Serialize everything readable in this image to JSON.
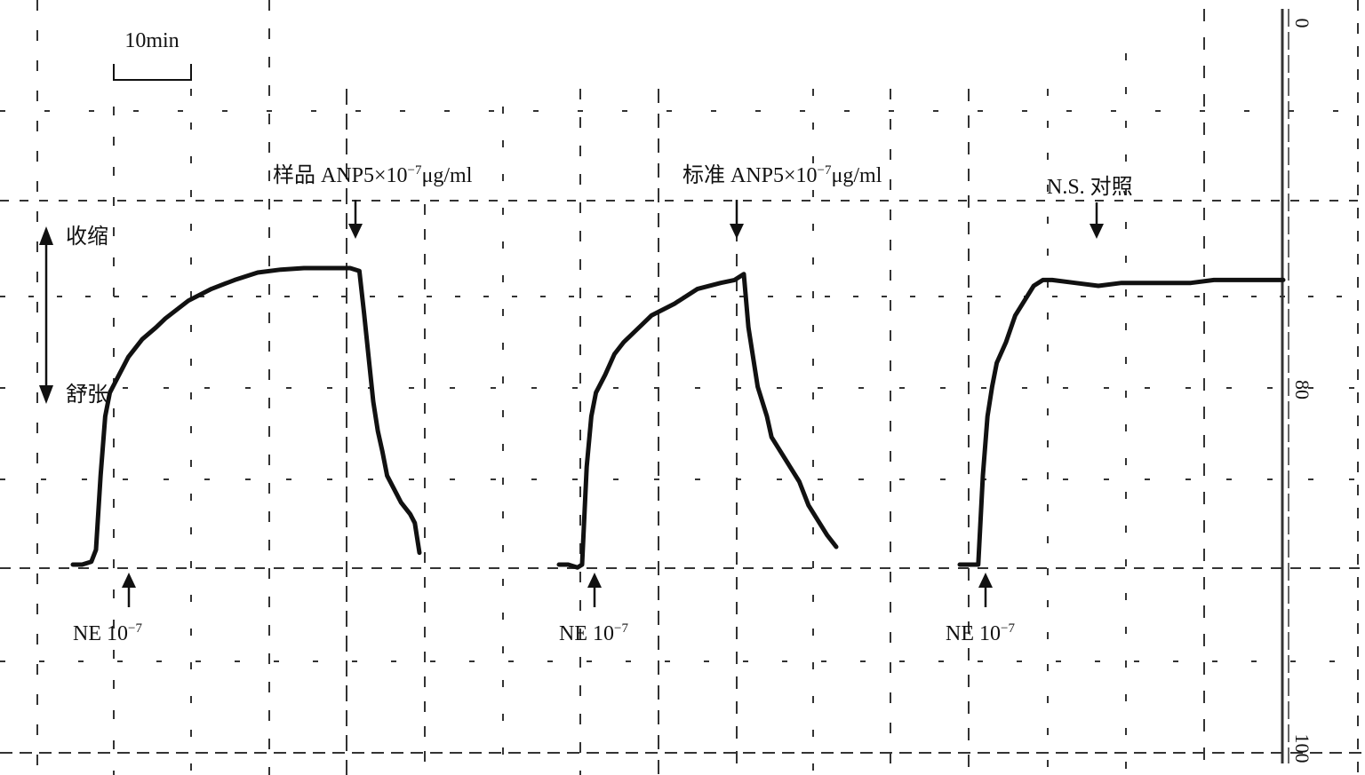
{
  "chart_data": {
    "type": "line",
    "xlabel": "",
    "ylabel": "",
    "time_scale_bar": "10min",
    "direction_labels": {
      "up": "收缩",
      "down": "舒张"
    },
    "scale": {
      "ticks": [
        "0",
        "80",
        "100"
      ]
    },
    "annotations": {
      "sample_anp": "样品 ANP5×10",
      "standard_anp": "标准 ANP5×10",
      "anp_exponent": "−7",
      "anp_unit": "μg/ml",
      "ns_control": "N.S. 对照",
      "ne": "NE 10",
      "ne_exponent": "−7"
    },
    "xlim": [
      0,
      160
    ],
    "ylim": [
      0,
      100
    ],
    "series": [
      {
        "x": [
          0,
          2,
          4,
          5,
          6,
          7,
          8,
          10,
          12,
          15,
          18,
          20,
          25,
          30,
          35,
          40,
          45,
          50,
          55,
          60,
          62,
          63,
          64,
          65,
          66,
          67,
          68,
          70,
          71,
          73,
          74,
          75
        ],
        "y": [
          0,
          0,
          1,
          5,
          30,
          50,
          58,
          64,
          70,
          76,
          80,
          83,
          89,
          93,
          96,
          98.5,
          99.5,
          100,
          100,
          100,
          99,
          85,
          70,
          55,
          45,
          38,
          30,
          24,
          21,
          17,
          14,
          4
        ]
      },
      {
        "x": [
          0,
          2,
          4,
          5,
          6,
          7,
          8,
          10,
          12,
          14,
          16,
          18,
          20,
          25,
          30,
          35,
          38,
          40,
          41,
          43,
          45,
          46,
          50,
          52,
          54,
          56,
          58,
          60
        ],
        "y": [
          0,
          0,
          -1,
          0,
          33,
          50,
          58,
          64,
          71,
          75,
          78,
          81,
          84,
          88,
          93,
          95,
          96,
          98,
          80,
          60,
          50,
          43,
          33,
          28,
          20,
          15,
          10,
          6
        ]
      },
      {
        "x": [
          0,
          2,
          4,
          5,
          6,
          7,
          8,
          10,
          12,
          14,
          16,
          18,
          20,
          25,
          30,
          35,
          40,
          45,
          50,
          55,
          60,
          65,
          70
        ],
        "y": [
          0,
          0,
          0,
          30,
          50,
          60,
          68,
          75,
          84,
          89,
          94,
          96,
          96,
          95,
          94,
          95,
          95,
          95,
          95,
          96,
          96,
          96,
          96
        ]
      }
    ]
  }
}
